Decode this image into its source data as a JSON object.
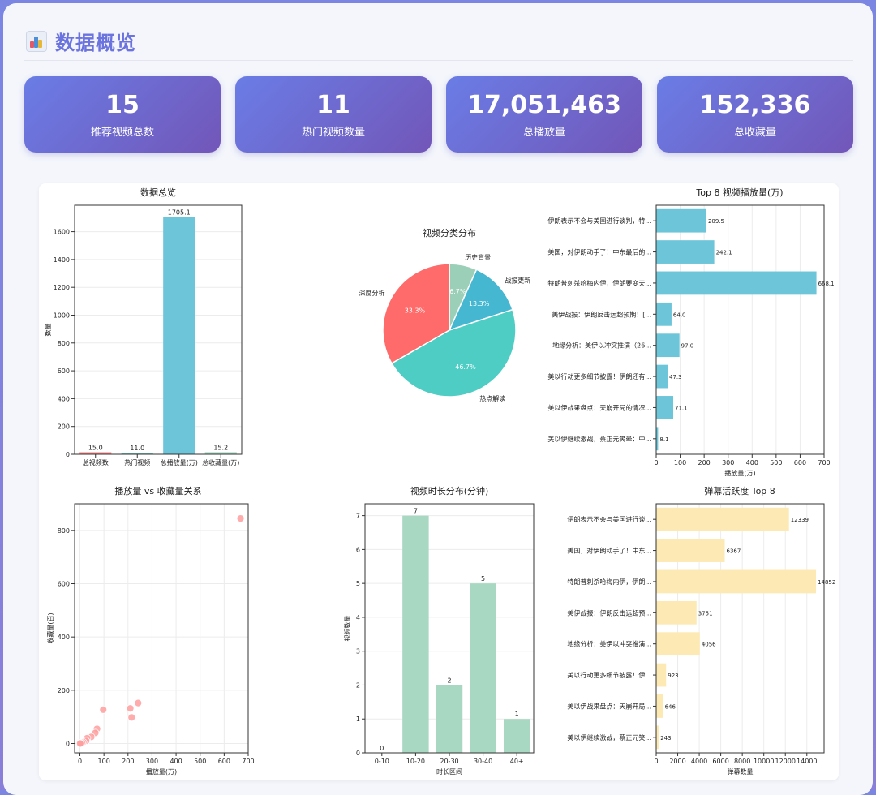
{
  "header": {
    "title": "数据概览",
    "icon": "bar-chart-icon"
  },
  "stats": [
    {
      "value": "15",
      "label": "推荐视频总数"
    },
    {
      "value": "11",
      "label": "热门视频数量"
    },
    {
      "value": "17,051,463",
      "label": "总播放量"
    },
    {
      "value": "152,336",
      "label": "总收藏量"
    }
  ],
  "colors": {
    "accent": "#6b73de",
    "teal": "#6cc5d9",
    "green": "#a8d8c2",
    "yellow": "#fde9b4",
    "red": "#ff9e9e"
  },
  "chart_data": [
    {
      "type": "bar",
      "title": "数据总览",
      "ylabel": "数量",
      "xlabel": "",
      "categories": [
        "总视频数",
        "热门视频",
        "总播放量(万)",
        "总收藏量(万)"
      ],
      "values": [
        15.0,
        11.0,
        1705.1,
        15.2
      ],
      "value_labels": [
        "15.0",
        "11.0",
        "1705.1",
        "15.2"
      ],
      "colors": [
        "#ff8a8a",
        "#6fd0c8",
        "#6cc5d9",
        "#a9d8c6"
      ],
      "ylim": [
        0,
        1790
      ],
      "yticks": [
        0,
        200,
        400,
        600,
        800,
        1000,
        1200,
        1400,
        1600
      ]
    },
    {
      "type": "pie",
      "title": "视频分类分布",
      "slices": [
        {
          "label": "历史背景",
          "value": 6.7,
          "pct": "6.7%",
          "color": "#9bcfb8"
        },
        {
          "label": "战报更新",
          "value": 13.3,
          "pct": "13.3%",
          "color": "#45b7d1"
        },
        {
          "label": "热点解读",
          "value": 46.7,
          "pct": "46.7%",
          "color": "#4ecdc4"
        },
        {
          "label": "深度分析",
          "value": 33.3,
          "pct": "33.3%",
          "color": "#ff6b6b"
        }
      ]
    },
    {
      "type": "bar",
      "orientation": "horizontal",
      "title": "Top 8 视频播放量(万)",
      "xlabel": "播放量(万)",
      "categories": [
        "伊朗表示不会与美国进行谈判，特...",
        "美国，对伊朗动手了！中东最后的...",
        "特朗普刺杀哈梅内伊，伊朗要变天...",
        "美伊战报：伊朗反击远超预期！[...",
        "地缘分析：美伊以冲突推演（26...",
        "美以行动更多细节披露！伊朗还有...",
        "美以伊战果盘点：天崩开局的情况...",
        "美以伊继续激战，蔡正元笑晕：中..."
      ],
      "values": [
        209.5,
        242.1,
        668.1,
        64.0,
        97.0,
        47.3,
        71.1,
        8.1
      ],
      "value_labels": [
        "209.5",
        "242.1",
        "668.1",
        "64.0",
        "97.0",
        "47.3",
        "71.1",
        "8.1"
      ],
      "xlim": [
        0,
        700
      ],
      "xticks": [
        0,
        100,
        200,
        300,
        400,
        500,
        600,
        700
      ]
    },
    {
      "type": "scatter",
      "title": "播放量 vs 收藏量关系",
      "xlabel": "播放量(万)",
      "ylabel": "收藏量(百)",
      "xlim": [
        -22,
        700
      ],
      "ylim": [
        -35,
        900
      ],
      "xticks": [
        0,
        100,
        200,
        300,
        400,
        500,
        600,
        700
      ],
      "yticks": [
        0,
        200,
        400,
        600,
        800
      ],
      "points": [
        [
          668.1,
          845
        ],
        [
          242.1,
          152
        ],
        [
          209.5,
          132
        ],
        [
          215,
          98
        ],
        [
          97.0,
          127
        ],
        [
          71.1,
          55
        ],
        [
          64.0,
          40
        ],
        [
          47.3,
          25
        ],
        [
          30,
          20
        ],
        [
          26,
          10
        ],
        [
          14,
          5
        ],
        [
          8.1,
          3
        ],
        [
          3,
          1
        ],
        [
          1,
          0
        ]
      ]
    },
    {
      "type": "bar",
      "title": "视频时长分布(分钟)",
      "xlabel": "时长区间",
      "ylabel": "视频数量",
      "categories": [
        "0-10",
        "10-20",
        "20-30",
        "30-40",
        "40+"
      ],
      "values": [
        0,
        7,
        2,
        5,
        1
      ],
      "value_labels": [
        "0",
        "7",
        "2",
        "5",
        "1"
      ],
      "ylim": [
        0,
        7.35
      ],
      "yticks": [
        0,
        1,
        2,
        3,
        4,
        5,
        6,
        7
      ]
    },
    {
      "type": "bar",
      "orientation": "horizontal",
      "title": "弹幕活跃度 Top 8",
      "xlabel": "弹幕数量",
      "categories": [
        "伊朗表示不会与美国进行谈...",
        "美国，对伊朗动手了！中东...",
        "特朗普刺杀哈梅内伊，伊朗...",
        "美伊战报：伊朗反击远超预...",
        "地缘分析：美伊以冲突推演...",
        "美以行动更多细节披露！伊...",
        "美以伊战果盘点：天崩开局...",
        "美以伊继续激战，蔡正元笑..."
      ],
      "values": [
        12339,
        6367,
        14852,
        3751,
        4056,
        923,
        646,
        243
      ],
      "value_labels": [
        "12339",
        "6367",
        "14852",
        "3751",
        "4056",
        "923",
        "646",
        "243"
      ],
      "xlim": [
        0,
        15600
      ],
      "xticks": [
        0,
        2000,
        4000,
        6000,
        8000,
        10000,
        12000,
        14000
      ]
    }
  ]
}
